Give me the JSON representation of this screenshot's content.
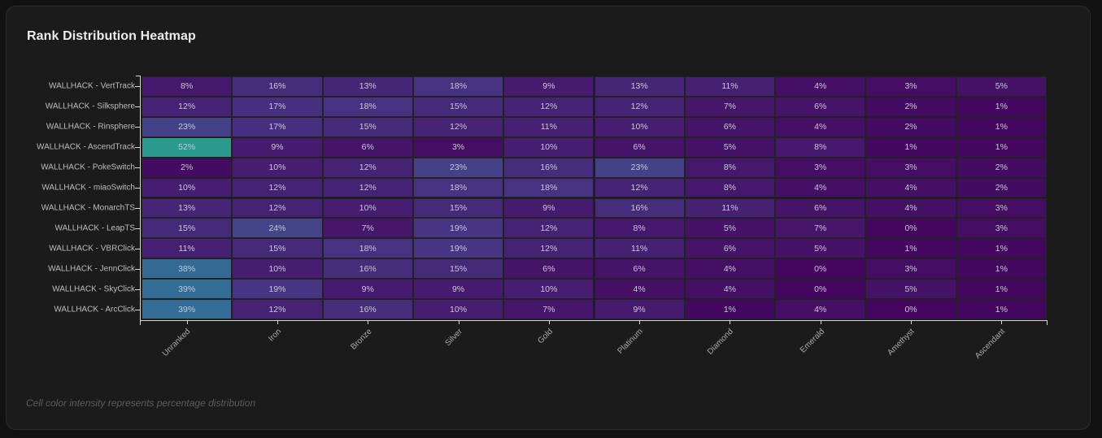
{
  "card": {
    "title": "Rank Distribution Heatmap",
    "footnote": "Cell color intensity represents percentage distribution"
  },
  "chart_data": {
    "type": "heatmap",
    "title": "Rank Distribution Heatmap",
    "xlabel": "",
    "ylabel": "",
    "value_format": "{v}%",
    "x_categories": [
      "Unranked",
      "Iron",
      "Bronze",
      "Silver",
      "Gold",
      "Platinum",
      "Diamond",
      "Emerald",
      "Amethyst",
      "Ascendant"
    ],
    "y_categories": [
      "WALLHACK - VertTrack",
      "WALLHACK - Silksphere",
      "WALLHACK - Rinsphere",
      "WALLHACK - AscendTrack",
      "WALLHACK - PokeSwitch",
      "WALLHACK - miaoSwitch",
      "WALLHACK - MonarchTS",
      "WALLHACK - LeapTS",
      "WALLHACK - VBRClick",
      "WALLHACK - JennClick",
      "WALLHACK - SkyClick",
      "WALLHACK - ArcClick"
    ],
    "values": [
      [
        8,
        16,
        13,
        18,
        9,
        13,
        11,
        4,
        3,
        5
      ],
      [
        12,
        17,
        18,
        15,
        12,
        12,
        7,
        6,
        2,
        1
      ],
      [
        23,
        17,
        15,
        12,
        11,
        10,
        6,
        4,
        2,
        1
      ],
      [
        52,
        9,
        6,
        3,
        10,
        6,
        5,
        8,
        1,
        1
      ],
      [
        2,
        10,
        12,
        23,
        16,
        23,
        8,
        3,
        3,
        2
      ],
      [
        10,
        12,
        12,
        18,
        18,
        12,
        8,
        4,
        4,
        2
      ],
      [
        13,
        12,
        10,
        15,
        9,
        16,
        11,
        6,
        4,
        3
      ],
      [
        15,
        24,
        7,
        19,
        12,
        8,
        5,
        7,
        0,
        3
      ],
      [
        11,
        15,
        18,
        19,
        12,
        11,
        6,
        5,
        1,
        1
      ],
      [
        38,
        10,
        16,
        15,
        6,
        6,
        4,
        0,
        3,
        1
      ],
      [
        39,
        19,
        9,
        9,
        10,
        4,
        4,
        0,
        5,
        1
      ],
      [
        39,
        12,
        16,
        10,
        7,
        9,
        1,
        4,
        0,
        1
      ]
    ],
    "color_scale": {
      "name": "viridis-like",
      "min": 0,
      "max": 52,
      "stops": [
        "#44065f",
        "#461a6e",
        "#46307f",
        "#434a8c",
        "#3a5e93",
        "#2b7b96",
        "#2a9a8f"
      ]
    },
    "legend": "none",
    "grid": false
  }
}
